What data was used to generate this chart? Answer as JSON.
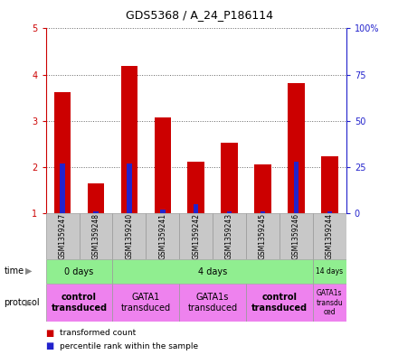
{
  "title": "GDS5368 / A_24_P186114",
  "samples": [
    "GSM1359247",
    "GSM1359248",
    "GSM1359240",
    "GSM1359241",
    "GSM1359242",
    "GSM1359243",
    "GSM1359245",
    "GSM1359246",
    "GSM1359244"
  ],
  "bar_bottom": 1.0,
  "red_values": [
    3.62,
    1.65,
    4.18,
    3.08,
    2.12,
    2.52,
    2.05,
    3.82,
    2.22
  ],
  "blue_pct": [
    27,
    1,
    27,
    2,
    5,
    1,
    1,
    28,
    1
  ],
  "ylim_left": [
    1,
    5
  ],
  "ylim_right": [
    0,
    100
  ],
  "yticks_left": [
    1,
    2,
    3,
    4,
    5
  ],
  "ytick_labels_left": [
    "1",
    "2",
    "3",
    "4",
    "5"
  ],
  "yticks_right": [
    0,
    25,
    50,
    75,
    100
  ],
  "ytick_labels_right": [
    "0",
    "25",
    "50",
    "75",
    "100%"
  ],
  "time_groups": [
    {
      "label": "0 days",
      "start": 0,
      "end": 2,
      "color": "#90EE90"
    },
    {
      "label": "4 days",
      "start": 2,
      "end": 8,
      "color": "#90EE90"
    },
    {
      "label": "14 days",
      "start": 8,
      "end": 9,
      "color": "#90EE90"
    }
  ],
  "protocol_groups": [
    {
      "label": "control\ntransduced",
      "start": 0,
      "end": 2,
      "color": "#EE82EE",
      "bold": true
    },
    {
      "label": "GATA1\ntransduced",
      "start": 2,
      "end": 4,
      "color": "#EE82EE",
      "bold": false
    },
    {
      "label": "GATA1s\ntransduced",
      "start": 4,
      "end": 6,
      "color": "#EE82EE",
      "bold": false
    },
    {
      "label": "control\ntransduced",
      "start": 6,
      "end": 8,
      "color": "#EE82EE",
      "bold": true
    },
    {
      "label": "GATA1s\ntransdu\nced",
      "start": 8,
      "end": 9,
      "color": "#EE82EE",
      "bold": false
    }
  ],
  "bar_color_red": "#CC0000",
  "bar_color_blue": "#2222CC",
  "background_color": "#ffffff",
  "tick_color_left": "#CC0000",
  "tick_color_right": "#2222CC",
  "label_row_bg": "#C8C8C8",
  "plot_bg": "#ffffff",
  "bar_width": 0.5,
  "blue_bar_width": 0.15
}
